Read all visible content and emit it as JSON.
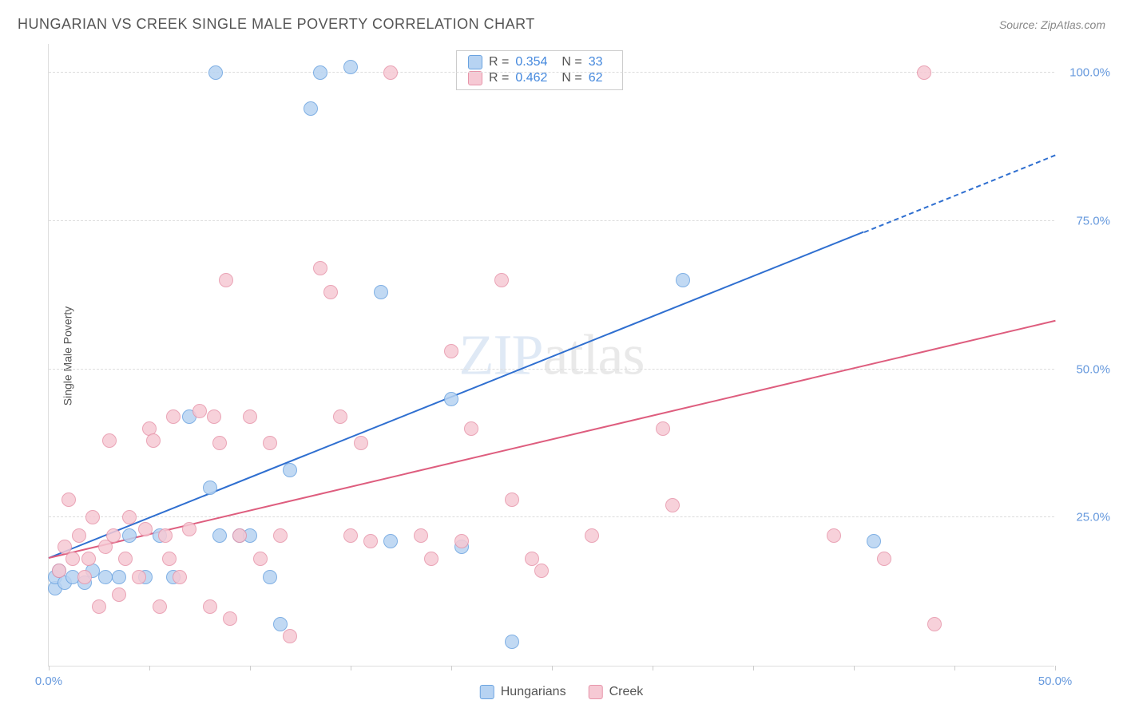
{
  "title": "HUNGARIAN VS CREEK SINGLE MALE POVERTY CORRELATION CHART",
  "source": "Source: ZipAtlas.com",
  "y_axis_label": "Single Male Poverty",
  "watermark": "ZIPatlas",
  "chart": {
    "type": "scatter",
    "xlim": [
      0,
      50
    ],
    "ylim": [
      0,
      105
    ],
    "x_ticks": [
      0,
      5,
      10,
      15,
      20,
      25,
      30,
      35,
      40,
      45,
      50
    ],
    "x_tick_labels": {
      "0": "0.0%",
      "50": "50.0%"
    },
    "y_gridlines": [
      25,
      50,
      75,
      100
    ],
    "y_tick_labels": {
      "25": "25.0%",
      "50": "50.0%",
      "75": "75.0%",
      "100": "100.0%"
    },
    "background_color": "#ffffff",
    "grid_color": "#dddddd",
    "tick_label_color": "#6699dd",
    "point_radius": 9,
    "series": [
      {
        "name": "Hungarians",
        "fill": "#b7d3f2",
        "stroke": "#6aa3e0",
        "trend_color": "#2f6fd0",
        "trend": {
          "x1": 0,
          "y1": 18,
          "x2": 40.5,
          "y2": 73,
          "solid_until": 40.5,
          "x_end": 50,
          "y_end": 86
        },
        "R": "0.354",
        "N": "33",
        "points": [
          [
            0.3,
            13
          ],
          [
            0.3,
            15
          ],
          [
            0.5,
            16
          ],
          [
            0.8,
            14
          ],
          [
            1.2,
            15
          ],
          [
            1.8,
            14
          ],
          [
            2.2,
            16
          ],
          [
            2.8,
            15
          ],
          [
            3.5,
            15
          ],
          [
            4.0,
            22
          ],
          [
            4.8,
            15
          ],
          [
            5.5,
            22
          ],
          [
            6.2,
            15
          ],
          [
            7.0,
            42
          ],
          [
            8.0,
            30
          ],
          [
            8.3,
            100
          ],
          [
            8.5,
            22
          ],
          [
            9.5,
            22
          ],
          [
            10.0,
            22
          ],
          [
            11.0,
            15
          ],
          [
            11.5,
            7
          ],
          [
            12.0,
            33
          ],
          [
            13.0,
            94
          ],
          [
            13.5,
            100
          ],
          [
            15.0,
            101
          ],
          [
            16.5,
            63
          ],
          [
            17.0,
            21
          ],
          [
            20.0,
            45
          ],
          [
            20.5,
            20
          ],
          [
            23.0,
            4
          ],
          [
            31.5,
            65
          ],
          [
            41.0,
            21
          ]
        ]
      },
      {
        "name": "Creek",
        "fill": "#f6c9d4",
        "stroke": "#e795aa",
        "trend_color": "#de5d7e",
        "trend": {
          "x1": 0,
          "y1": 18,
          "x2": 50,
          "y2": 58
        },
        "R": "0.462",
        "N": "62",
        "points": [
          [
            0.5,
            16
          ],
          [
            0.8,
            20
          ],
          [
            1.0,
            28
          ],
          [
            1.2,
            18
          ],
          [
            1.5,
            22
          ],
          [
            1.8,
            15
          ],
          [
            2.0,
            18
          ],
          [
            2.2,
            25
          ],
          [
            2.5,
            10
          ],
          [
            2.8,
            20
          ],
          [
            3.0,
            38
          ],
          [
            3.2,
            22
          ],
          [
            3.5,
            12
          ],
          [
            3.8,
            18
          ],
          [
            4.0,
            25
          ],
          [
            4.5,
            15
          ],
          [
            4.8,
            23
          ],
          [
            5.0,
            40
          ],
          [
            5.2,
            38
          ],
          [
            5.5,
            10
          ],
          [
            5.8,
            22
          ],
          [
            6.0,
            18
          ],
          [
            6.2,
            42
          ],
          [
            6.5,
            15
          ],
          [
            7.0,
            23
          ],
          [
            7.5,
            43
          ],
          [
            8.0,
            10
          ],
          [
            8.2,
            42
          ],
          [
            8.5,
            37.5
          ],
          [
            8.8,
            65
          ],
          [
            9.0,
            8
          ],
          [
            9.5,
            22
          ],
          [
            10.0,
            42
          ],
          [
            10.5,
            18
          ],
          [
            11.0,
            37.5
          ],
          [
            11.5,
            22
          ],
          [
            12.0,
            5
          ],
          [
            13.5,
            67
          ],
          [
            14.0,
            63
          ],
          [
            14.5,
            42
          ],
          [
            15.0,
            22
          ],
          [
            15.5,
            37.5
          ],
          [
            16.0,
            21
          ],
          [
            17.0,
            100
          ],
          [
            18.5,
            22
          ],
          [
            19.0,
            18
          ],
          [
            20.0,
            53
          ],
          [
            20.5,
            21
          ],
          [
            21.0,
            40
          ],
          [
            22.5,
            65
          ],
          [
            23.0,
            28
          ],
          [
            24.0,
            18
          ],
          [
            24.5,
            16
          ],
          [
            27.0,
            22
          ],
          [
            30.5,
            40
          ],
          [
            31.0,
            27
          ],
          [
            39.0,
            22
          ],
          [
            41.5,
            18
          ],
          [
            43.5,
            100
          ],
          [
            44.0,
            7
          ]
        ]
      }
    ]
  },
  "legend": {
    "series1": "Hungarians",
    "series2": "Creek"
  }
}
